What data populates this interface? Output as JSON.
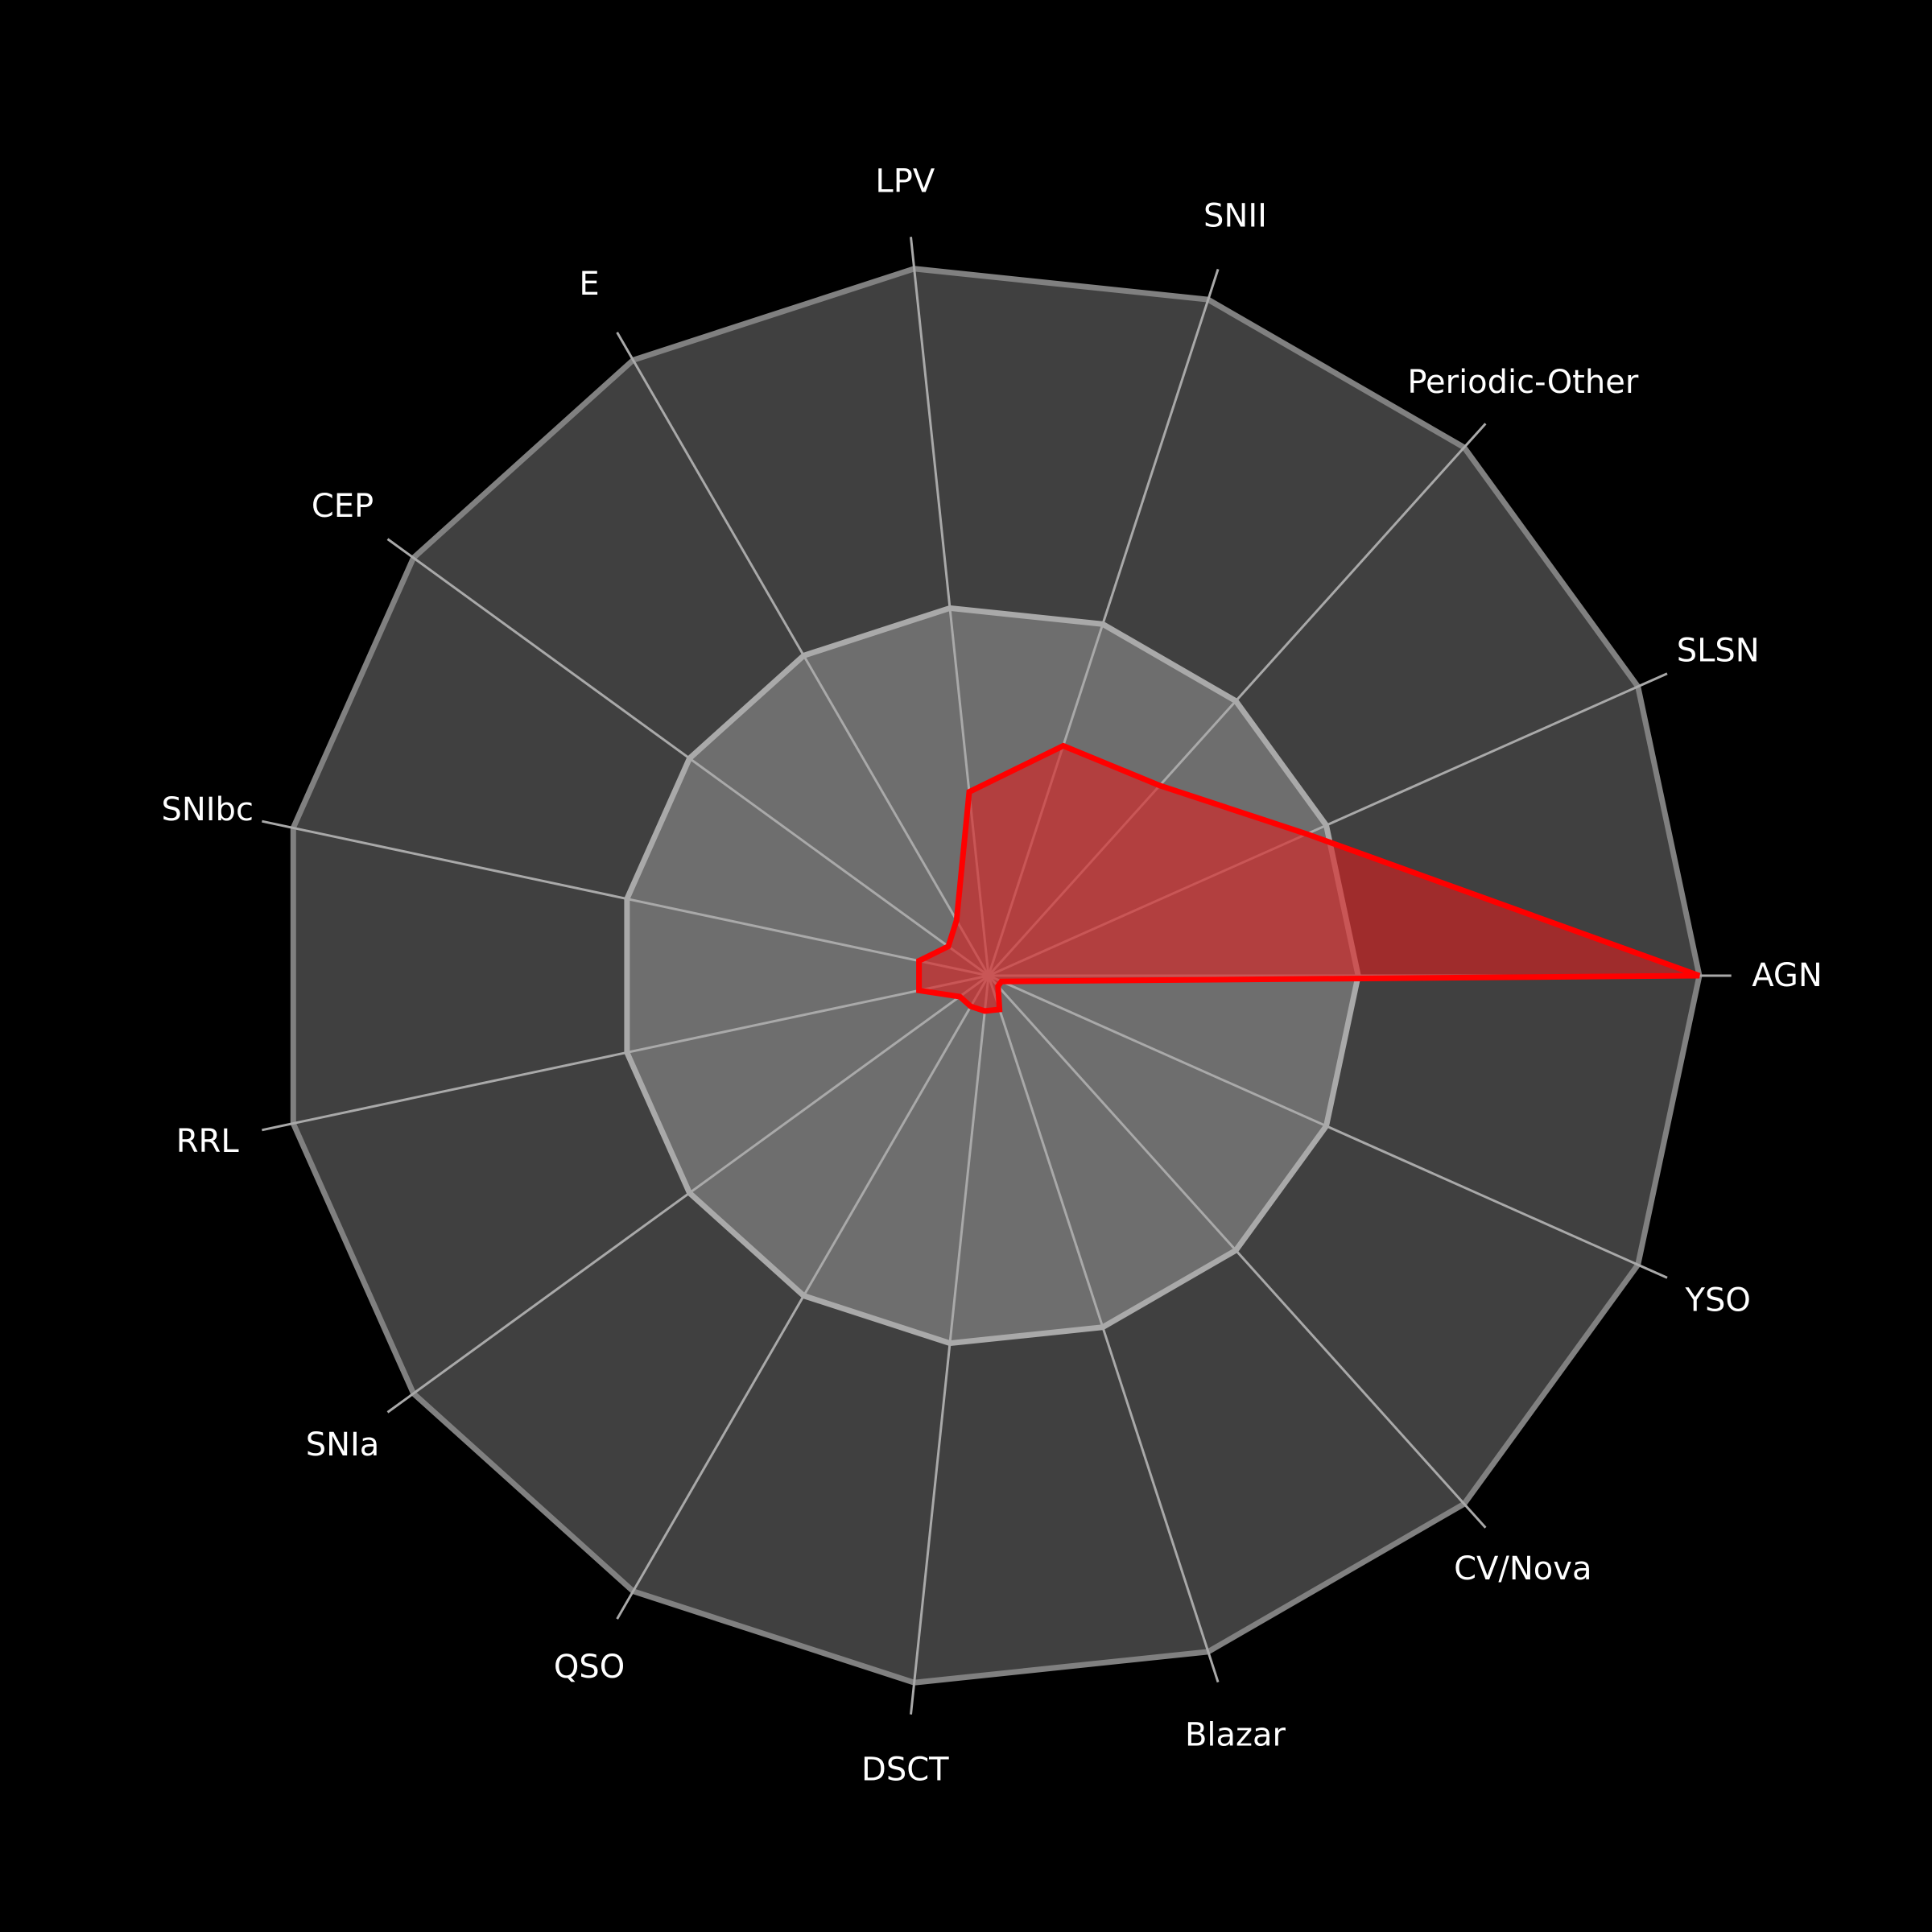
{
  "chart_data": {
    "type": "radar",
    "title": "",
    "categories": [
      "AGN",
      "SLSN",
      "Periodic-Other",
      "SNII",
      "LPV",
      "E",
      "CEP",
      "SNIbc",
      "RRL",
      "SNIa",
      "QSO",
      "DSCT",
      "Blazar",
      "CV/Nova",
      "YSO"
    ],
    "series": [
      {
        "values": [
          1.0,
          0.49,
          0.36,
          0.34,
          0.26,
          0.09,
          0.07,
          0.1,
          0.1,
          0.05,
          0.05,
          0.05,
          0.05,
          0.02,
          0.02
        ]
      }
    ],
    "rlim": [
      0,
      1
    ],
    "bands": [
      0.52,
      1.0
    ],
    "grid": true,
    "colors": {
      "background": "#000000",
      "outer_band": "#404040",
      "inner_band": "#6e6e6e",
      "outer_ring": "#808080",
      "inner_ring": "#a9a9a9",
      "spoke": "#a9a9a9",
      "series_line": "#ff0000",
      "series_fill": "#e0201f",
      "label": "#ffffff"
    }
  }
}
